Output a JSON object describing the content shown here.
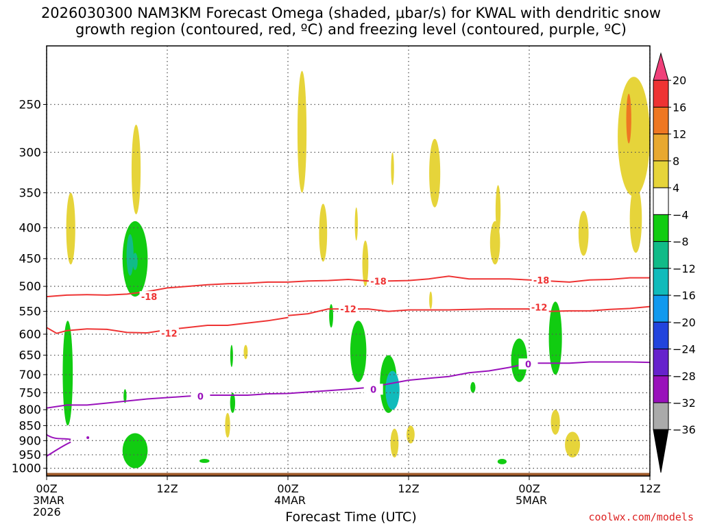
{
  "title": {
    "line1": "2026030300 NAM3KM Forecast Omega (shaded, μbar/s) for KWAL with dendritic snow",
    "line2": "growth region (contoured, red, ºC) and freezing level (contoured, purple, ºC)"
  },
  "watermark": "coolwx.com/models",
  "chart_data": {
    "type": "heatmap",
    "title": "2026030300 NAM3KM Forecast Omega (shaded, μbar/s) for KWAL with dendritic snow growth region (contoured, red, ºC) and freezing level (contoured, purple, ºC)",
    "xlabel": "Forecast Time (UTC)",
    "ylabel": "",
    "x_range_hours": [
      0,
      60
    ],
    "y_range_hPa": [
      1030,
      200
    ],
    "y_scale": "log-pressure",
    "x_ticks": [
      {
        "hour": 0,
        "label": "00Z",
        "sub": "3MAR",
        "sub2": "2026"
      },
      {
        "hour": 12,
        "label": "12Z"
      },
      {
        "hour": 24,
        "label": "00Z",
        "sub": "4MAR"
      },
      {
        "hour": 36,
        "label": "12Z"
      },
      {
        "hour": 48,
        "label": "00Z",
        "sub": "5MAR"
      },
      {
        "hour": 60,
        "label": "12Z"
      }
    ],
    "y_ticks": [
      250,
      300,
      350,
      400,
      450,
      500,
      550,
      600,
      650,
      700,
      750,
      800,
      850,
      900,
      950,
      1000
    ],
    "grid": true,
    "colorbar": {
      "labels": [
        "20",
        "16",
        "12",
        "8",
        "4",
        "−4",
        "−8",
        "−12",
        "−16",
        "−20",
        "−24",
        "−28",
        "−32",
        "−36"
      ],
      "colors": [
        "#f0407a",
        "#ee3333",
        "#ee7722",
        "#e8a830",
        "#e6d43a",
        "#ffffff",
        "#11cc11",
        "#11bb88",
        "#11bbbb",
        "#1199ee",
        "#2244dd",
        "#6622cc",
        "#9911bb",
        "#aaaaaa",
        "#000000"
      ]
    },
    "contour_labels": {
      "red": [
        "-18",
        "-12"
      ],
      "purple": "0"
    },
    "series": [
      {
        "name": "-18",
        "color": "#ee3333",
        "points": [
          [
            0,
            520
          ],
          [
            2,
            517
          ],
          [
            4,
            516
          ],
          [
            6,
            517
          ],
          [
            8,
            515
          ],
          [
            10,
            510
          ],
          [
            12,
            503
          ],
          [
            14,
            500
          ],
          [
            16,
            497
          ],
          [
            18,
            495
          ],
          [
            20,
            494
          ],
          [
            22,
            492
          ],
          [
            24,
            492
          ],
          [
            26,
            490
          ],
          [
            28,
            489
          ],
          [
            30,
            487
          ],
          [
            32,
            490
          ],
          [
            34,
            490
          ],
          [
            36,
            489
          ],
          [
            38,
            486
          ],
          [
            40,
            481
          ],
          [
            42,
            486
          ],
          [
            44,
            486
          ],
          [
            46,
            486
          ],
          [
            48,
            488
          ],
          [
            50,
            490
          ],
          [
            52,
            492
          ],
          [
            54,
            488
          ],
          [
            56,
            487
          ],
          [
            58,
            484
          ],
          [
            60,
            484
          ]
        ]
      },
      {
        "name": "-12 (upper)",
        "color": "#ee3333",
        "points": [
          [
            24,
            559
          ],
          [
            26,
            555
          ],
          [
            28,
            545
          ],
          [
            30,
            545
          ],
          [
            32,
            545
          ],
          [
            34,
            550
          ],
          [
            36,
            547
          ],
          [
            38,
            547
          ],
          [
            40,
            547
          ],
          [
            42,
            546
          ],
          [
            44,
            545
          ],
          [
            46,
            545
          ],
          [
            48,
            545
          ],
          [
            50,
            550
          ],
          [
            52,
            549
          ],
          [
            54,
            549
          ],
          [
            56,
            546
          ],
          [
            58,
            544
          ],
          [
            60,
            540
          ]
        ]
      },
      {
        "name": "-12 (lower)",
        "color": "#ee3333",
        "points": [
          [
            0,
            585
          ],
          [
            1,
            598
          ],
          [
            2,
            592
          ],
          [
            4,
            588
          ],
          [
            6,
            589
          ],
          [
            8,
            596
          ],
          [
            10,
            597
          ],
          [
            12,
            590
          ],
          [
            14,
            585
          ],
          [
            16,
            580
          ],
          [
            18,
            580
          ],
          [
            20,
            575
          ],
          [
            22,
            570
          ],
          [
            24,
            563
          ]
        ]
      },
      {
        "name": "0",
        "color": "#9911bb",
        "points": [
          [
            0,
            795
          ],
          [
            2,
            786
          ],
          [
            4,
            786
          ],
          [
            6,
            780
          ],
          [
            8,
            774
          ],
          [
            10,
            768
          ],
          [
            12,
            764
          ],
          [
            14,
            760
          ],
          [
            16,
            757
          ],
          [
            18,
            757
          ],
          [
            20,
            757
          ],
          [
            22,
            753
          ],
          [
            24,
            752
          ],
          [
            26,
            748
          ],
          [
            28,
            744
          ],
          [
            30,
            740
          ],
          [
            32,
            735
          ],
          [
            34,
            725
          ],
          [
            36,
            715
          ],
          [
            38,
            710
          ],
          [
            40,
            705
          ],
          [
            42,
            695
          ],
          [
            44,
            690
          ],
          [
            46,
            681
          ],
          [
            48,
            670
          ],
          [
            50,
            670
          ],
          [
            52,
            670
          ],
          [
            54,
            667
          ],
          [
            56,
            667
          ],
          [
            58,
            667
          ],
          [
            60,
            668
          ]
        ]
      }
    ],
    "omega_regions": [
      {
        "color": "#e6d43a",
        "t": 2.4,
        "p": [
          350,
          460
        ],
        "w": 0.9
      },
      {
        "color": "#e6d43a",
        "t": 8.9,
        "p": [
          270,
          380
        ],
        "w": 0.9
      },
      {
        "color": "#11cc11",
        "t": 8.8,
        "p": [
          390,
          520
        ],
        "w": 2.5
      },
      {
        "color": "#11bb88",
        "t": 8.3,
        "p": [
          410,
          480
        ],
        "w": 0.7
      },
      {
        "color": "#11bb88",
        "t": 8.8,
        "p": [
          440,
          470
        ],
        "w": 0.5
      },
      {
        "color": "#e6d43a",
        "t": 19.8,
        "p": [
          625,
          660
        ],
        "w": 0.4
      },
      {
        "color": "#11cc11",
        "t": 18.4,
        "p": [
          625,
          680
        ],
        "w": 0.2
      },
      {
        "color": "#11cc11",
        "t": 18.5,
        "p": [
          750,
          810
        ],
        "w": 0.5
      },
      {
        "color": "#e6d43a",
        "t": 18.0,
        "p": [
          810,
          890
        ],
        "w": 0.5
      },
      {
        "color": "#11cc11",
        "t": 2.1,
        "p": [
          570,
          850
        ],
        "w": 1.0
      },
      {
        "color": "#11cc11",
        "t": 8.8,
        "p": [
          875,
          1000
        ],
        "w": 2.5
      },
      {
        "color": "#11cc11",
        "t": 7.8,
        "p": [
          740,
          780
        ],
        "w": 0.3
      },
      {
        "color": "#11cc11",
        "t": 15.7,
        "p": [
          965,
          980
        ],
        "w": 1.0
      },
      {
        "color": "#e6d43a",
        "t": 25.4,
        "p": [
          220,
          350
        ],
        "w": 0.9
      },
      {
        "color": "#e6d43a",
        "t": 27.5,
        "p": [
          365,
          455
        ],
        "w": 0.8
      },
      {
        "color": "#11cc11",
        "t": 28.3,
        "p": [
          535,
          585
        ],
        "w": 0.4
      },
      {
        "color": "#e6d43a",
        "t": 30.8,
        "p": [
          370,
          420
        ],
        "w": 0.3
      },
      {
        "color": "#e6d43a",
        "t": 31.7,
        "p": [
          420,
          500
        ],
        "w": 0.6
      },
      {
        "color": "#11cc11",
        "t": 31.0,
        "p": [
          570,
          720
        ],
        "w": 1.6
      },
      {
        "color": "#11cc11",
        "t": 34.0,
        "p": [
          650,
          810
        ],
        "w": 1.7
      },
      {
        "color": "#1199ee",
        "t": 34.5,
        "p": [
          700,
          790
        ],
        "w": 1.0
      },
      {
        "color": "#11bbbb",
        "t": 34.4,
        "p": [
          690,
          800
        ],
        "w": 1.4
      },
      {
        "color": "#e6d43a",
        "t": 34.6,
        "p": [
          860,
          960
        ],
        "w": 0.8
      },
      {
        "color": "#e6d43a",
        "t": 36.2,
        "p": [
          850,
          910
        ],
        "w": 0.8
      },
      {
        "color": "#e6d43a",
        "t": 34.4,
        "p": [
          300,
          340
        ],
        "w": 0.3
      },
      {
        "color": "#e6d43a",
        "t": 38.6,
        "p": [
          285,
          370
        ],
        "w": 1.1
      },
      {
        "color": "#e6d43a",
        "t": 38.2,
        "p": [
          510,
          545
        ],
        "w": 0.3
      },
      {
        "color": "#11cc11",
        "t": 42.4,
        "p": [
          720,
          750
        ],
        "w": 0.5
      },
      {
        "color": "#e6d43a",
        "t": 44.9,
        "p": [
          340,
          410
        ],
        "w": 0.5
      },
      {
        "color": "#e6d43a",
        "t": 44.6,
        "p": [
          390,
          460
        ],
        "w": 1.0
      },
      {
        "color": "#11cc11",
        "t": 47.0,
        "p": [
          610,
          720
        ],
        "w": 1.6
      },
      {
        "color": "#11cc11",
        "t": 45.3,
        "p": [
          965,
          985
        ],
        "w": 0.9
      },
      {
        "color": "#11cc11",
        "t": 50.6,
        "p": [
          530,
          700
        ],
        "w": 1.3
      },
      {
        "color": "#e6d43a",
        "t": 50.6,
        "p": [
          800,
          880
        ],
        "w": 0.9
      },
      {
        "color": "#e6d43a",
        "t": 52.3,
        "p": [
          870,
          960
        ],
        "w": 1.5
      },
      {
        "color": "#e6d43a",
        "t": 53.4,
        "p": [
          375,
          445
        ],
        "w": 1.0
      },
      {
        "color": "#e6d43a",
        "t": 58.4,
        "p": [
          225,
          355
        ],
        "w": 3.2
      },
      {
        "color": "#ee7722",
        "t": 57.9,
        "p": [
          240,
          290
        ],
        "w": 0.5
      },
      {
        "color": "#e6d43a",
        "t": 58.6,
        "p": [
          340,
          440
        ],
        "w": 1.2
      }
    ],
    "terrain_color": "#9e5a2a"
  }
}
